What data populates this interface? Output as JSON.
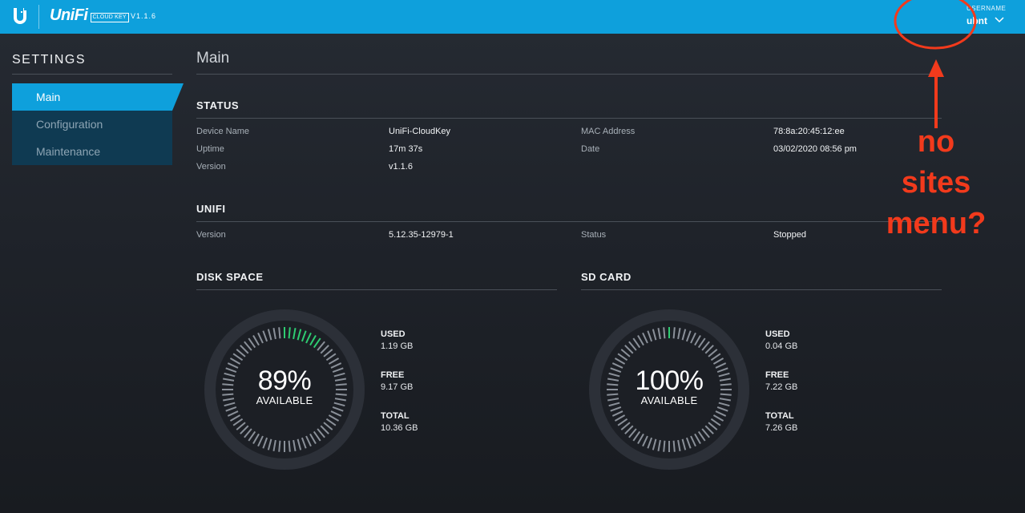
{
  "topbar": {
    "brand_name": "UniFi",
    "brand_badge": "CLOUD KEY",
    "version": "V1.1.6",
    "user_label": "USERNAME",
    "user_name": "ubnt"
  },
  "sidebar": {
    "title": "SETTINGS",
    "items": [
      {
        "label": "Main",
        "active": true
      },
      {
        "label": "Configuration",
        "active": false
      },
      {
        "label": "Maintenance",
        "active": false
      }
    ]
  },
  "main": {
    "title": "Main",
    "status": {
      "heading": "STATUS",
      "device_name_label": "Device Name",
      "device_name": "UniFi-CloudKey",
      "uptime_label": "Uptime",
      "uptime": "17m 37s",
      "version_label": "Version",
      "version": "v1.1.6",
      "mac_label": "MAC Address",
      "mac": "78:8a:20:45:12:ee",
      "date_label": "Date",
      "date": "03/02/2020 08:56 pm"
    },
    "unifi": {
      "heading": "UNIFI",
      "version_label": "Version",
      "version": "5.12.35-12979-1",
      "status_label": "Status",
      "status": "Stopped"
    },
    "disk": {
      "heading": "DISK SPACE",
      "percent": "89%",
      "available_label": "AVAILABLE",
      "used_fraction": 0.11,
      "used_label": "USED",
      "used": "1.19 GB",
      "free_label": "FREE",
      "free": "9.17 GB",
      "total_label": "TOTAL",
      "total": "10.36 GB"
    },
    "sd": {
      "heading": "SD CARD",
      "percent": "100%",
      "available_label": "AVAILABLE",
      "used_fraction": 0.005,
      "used_label": "USED",
      "used": "0.04 GB",
      "free_label": "FREE",
      "free": "7.22 GB",
      "total_label": "TOTAL",
      "total": "7.26 GB"
    }
  },
  "annotation": {
    "line1": "no",
    "line2": "sites",
    "line3": "menu?",
    "color": "#f23a1c"
  },
  "colors": {
    "accent": "#0ea0dc",
    "gauge_used": "#2ecc71",
    "gauge_free": "#8a9099"
  }
}
